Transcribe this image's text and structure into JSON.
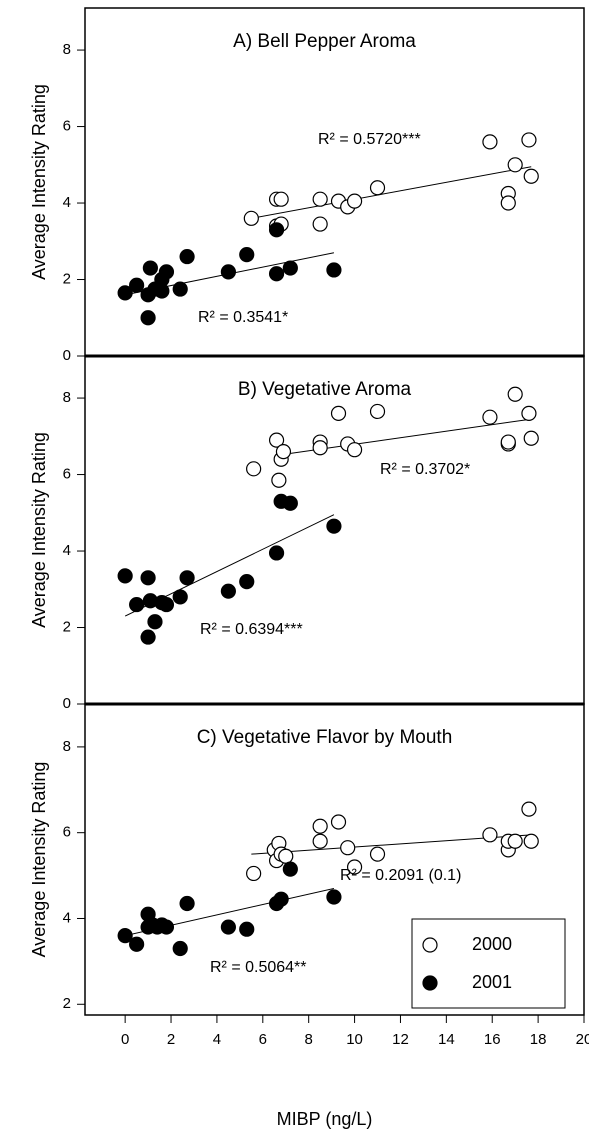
{
  "chart_data": [
    {
      "type": "scatter",
      "title": "A) Bell Pepper Aroma",
      "ylabel": "Average Intensity Rating",
      "xlim": [
        -1.75,
        20
      ],
      "ylim": [
        0,
        9.1
      ],
      "yticks": [
        0,
        2,
        4,
        6,
        8
      ],
      "annotations": [
        "R² = 0.5720***",
        "R² = 0.3541*"
      ],
      "series": [
        {
          "name": "2000",
          "color": "#000000",
          "marker": "open",
          "x": [
            5.5,
            6.6,
            6.8,
            6.6,
            6.8,
            8.5,
            8.5,
            9.3,
            9.7,
            10,
            11,
            15.9,
            16.7,
            16.7,
            17,
            17.6,
            17.7
          ],
          "values": [
            3.6,
            4.1,
            4.1,
            3.4,
            3.45,
            4.1,
            3.45,
            4.05,
            3.9,
            4.05,
            4.4,
            5.6,
            4.25,
            4.0,
            5.0,
            5.65,
            4.7
          ],
          "fit_x": [
            5.5,
            17.7
          ],
          "fit_values": [
            3.6,
            4.95
          ]
        },
        {
          "name": "2001",
          "color": "#000000",
          "marker": "filled",
          "x": [
            0,
            0.5,
            1,
            1,
            1.1,
            1.3,
            1.6,
            1.6,
            1.8,
            2.4,
            2.7,
            4.5,
            5.3,
            6.6,
            6.6,
            7.2,
            9.1
          ],
          "values": [
            1.65,
            1.85,
            1.0,
            1.6,
            2.3,
            1.75,
            2.0,
            1.7,
            2.2,
            1.75,
            2.6,
            2.2,
            2.65,
            2.15,
            3.3,
            2.3,
            2.25
          ],
          "fit_x": [
            0,
            9.1
          ],
          "fit_values": [
            1.6,
            2.7
          ]
        }
      ]
    },
    {
      "type": "scatter",
      "title": "B) Vegetative Aroma",
      "ylabel": "Average Intensity Rating",
      "xlim": [
        -1.75,
        20
      ],
      "ylim": [
        0,
        9.1
      ],
      "yticks": [
        0,
        2,
        4,
        6,
        8
      ],
      "annotations": [
        "R² = 0.3702*",
        "R² = 0.6394***"
      ],
      "series": [
        {
          "name": "2000",
          "color": "#000000",
          "marker": "open",
          "x": [
            5.6,
            6.6,
            6.7,
            6.8,
            6.9,
            8.5,
            8.5,
            9.3,
            9.7,
            10,
            11,
            15.9,
            16.7,
            16.7,
            17,
            17.6,
            17.7
          ],
          "values": [
            6.15,
            6.9,
            5.85,
            6.4,
            6.6,
            6.85,
            6.7,
            7.6,
            6.8,
            6.65,
            7.65,
            7.5,
            6.8,
            6.85,
            8.1,
            7.6,
            6.95
          ],
          "fit_x": [
            6.6,
            17.7
          ],
          "fit_values": [
            6.5,
            7.45
          ]
        },
        {
          "name": "2001",
          "color": "#000000",
          "marker": "filled",
          "x": [
            0,
            0.5,
            1,
            1,
            1.1,
            1.3,
            1.6,
            1.8,
            2.4,
            2.7,
            4.5,
            5.3,
            6.6,
            6.8,
            7.2,
            9.1
          ],
          "values": [
            3.35,
            2.6,
            3.3,
            1.75,
            2.7,
            2.15,
            2.65,
            2.6,
            2.8,
            3.3,
            2.95,
            3.2,
            3.95,
            5.3,
            5.25,
            4.65
          ],
          "fit_x": [
            0,
            9.1
          ],
          "fit_values": [
            2.3,
            4.95
          ]
        }
      ]
    },
    {
      "type": "scatter",
      "title": "C) Vegetative Flavor by Mouth",
      "ylabel": "Average Intensity Rating",
      "xlabel": "MIBP (ng/L)",
      "xlim": [
        -1.75,
        20
      ],
      "ylim": [
        1.75,
        9
      ],
      "yticks": [
        2,
        4,
        6,
        8
      ],
      "xticks": [
        0,
        2,
        4,
        6,
        8,
        10,
        12,
        14,
        16,
        18,
        20
      ],
      "legend": "lower right",
      "annotations": [
        "R² = 0.2091 (0.1)",
        "R² = 0.5064**"
      ],
      "series": [
        {
          "name": "2000",
          "color": "#000000",
          "marker": "open",
          "x": [
            5.6,
            6.5,
            6.6,
            6.7,
            6.8,
            7,
            8.5,
            8.5,
            9.3,
            9.7,
            10,
            11,
            15.9,
            16.7,
            16.7,
            17,
            17.6,
            17.7
          ],
          "values": [
            5.05,
            5.6,
            5.35,
            5.75,
            5.5,
            5.45,
            6.15,
            5.8,
            6.25,
            5.65,
            5.2,
            5.5,
            5.95,
            5.6,
            5.8,
            5.8,
            6.55,
            5.8
          ],
          "fit_x": [
            5.5,
            17.7
          ],
          "fit_values": [
            5.5,
            5.95
          ]
        },
        {
          "name": "2001",
          "color": "#000000",
          "marker": "filled",
          "x": [
            0,
            0.5,
            1,
            1,
            1.2,
            1.4,
            1.6,
            1.8,
            2.4,
            2.7,
            4.5,
            5.3,
            6.6,
            6.8,
            7.2,
            9.1
          ],
          "values": [
            3.6,
            3.4,
            4.1,
            3.8,
            3.85,
            3.8,
            3.85,
            3.8,
            3.3,
            4.35,
            3.8,
            3.75,
            4.35,
            4.45,
            5.15,
            4.5
          ],
          "fit_x": [
            0,
            9.1
          ],
          "fit_values": [
            3.6,
            4.7
          ]
        }
      ]
    }
  ]
}
